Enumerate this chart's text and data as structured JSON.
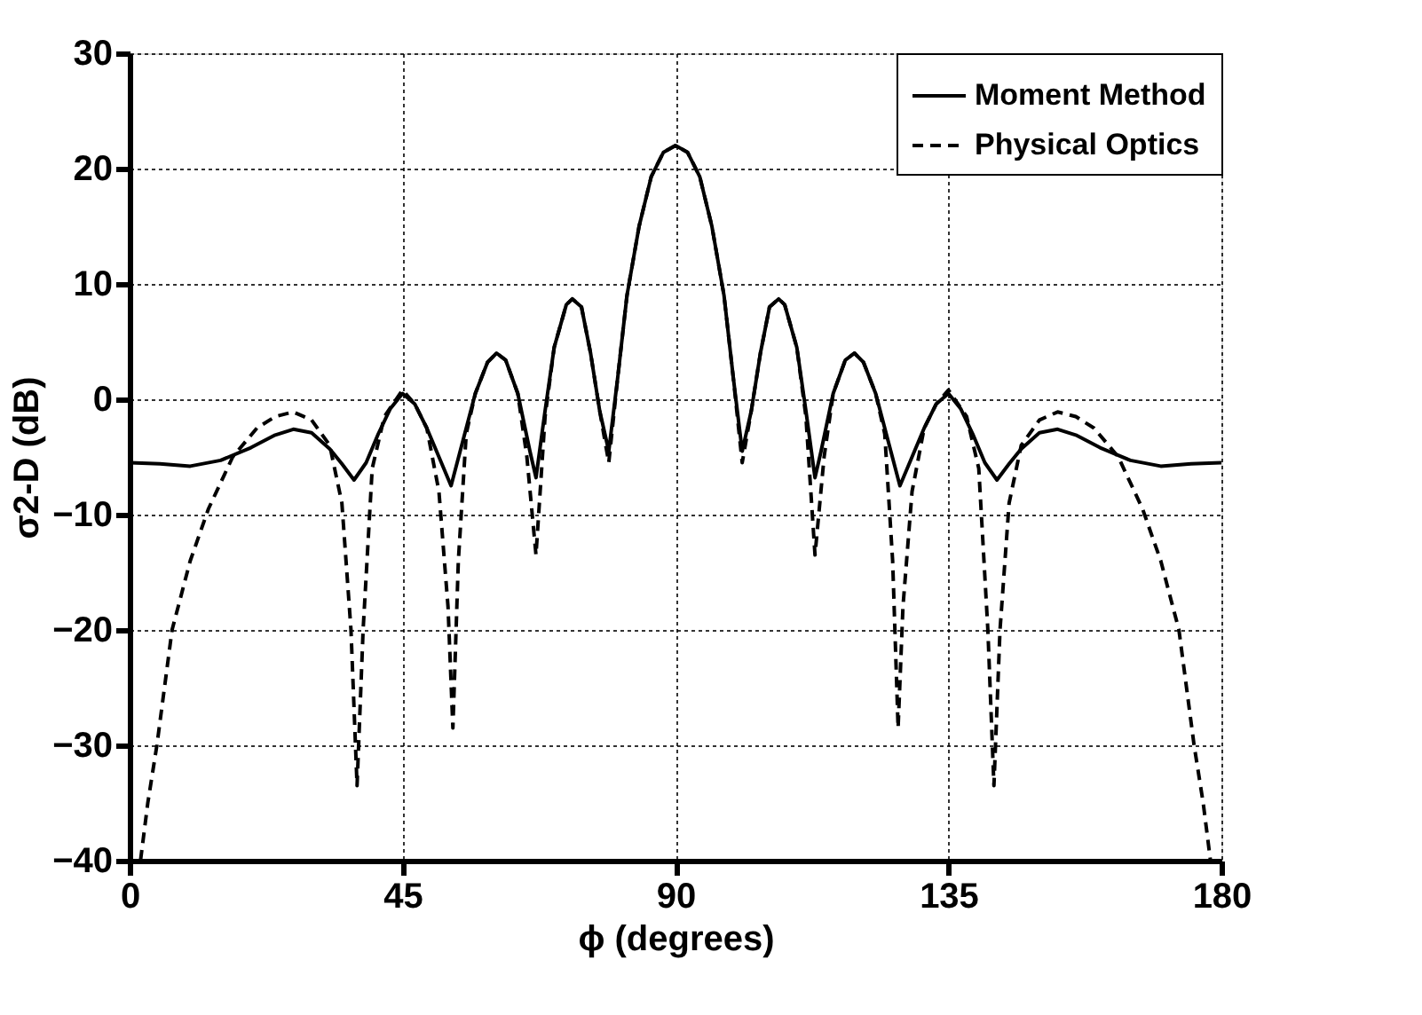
{
  "chart_data": {
    "type": "line",
    "xlabel": "ϕ (degrees)",
    "ylabel": "σ2-D (dB)",
    "xlim": [
      0,
      180
    ],
    "xticks": [
      0,
      45,
      90,
      135,
      180
    ],
    "ylim": [
      -40,
      30
    ],
    "yticks": [
      -40,
      -30,
      -20,
      -10,
      0,
      10,
      20,
      30
    ],
    "grid": true,
    "legend": "top right",
    "marker": "none",
    "series": [
      {
        "name": "Moment Method",
        "color": "#000000",
        "line_style": "solid",
        "x": [
          0,
          5,
          10,
          15,
          20,
          24,
          27,
          30,
          33,
          35,
          37,
          39,
          41,
          43,
          45,
          47,
          49,
          51,
          53,
          55,
          57,
          59,
          60.5,
          62,
          64,
          66,
          67,
          68.5,
          70,
          72,
          73,
          74.5,
          76,
          77.5,
          79,
          80.5,
          82,
          84,
          86,
          88,
          90,
          92,
          94,
          96,
          98,
          99.5,
          101,
          102.5,
          104,
          105.5,
          107,
          108,
          110,
          111.5,
          113,
          114,
          116,
          118,
          119.5,
          121,
          123,
          125,
          127,
          129,
          131,
          133,
          135,
          137,
          139,
          141,
          143,
          145,
          147,
          150,
          153,
          156,
          160,
          165,
          170,
          175,
          180
        ],
        "values": [
          -5.5,
          -5.6,
          -5.8,
          -5.3,
          -4.2,
          -3.1,
          -2.6,
          -2.9,
          -4.3,
          -5.6,
          -7,
          -5.5,
          -3,
          -0.8,
          0.5,
          -0.4,
          -2.5,
          -5,
          -7.5,
          -3.5,
          0.5,
          3.2,
          4,
          3.4,
          0.5,
          -4.5,
          -6.8,
          -1,
          4.5,
          8.2,
          8.7,
          8,
          4,
          -1,
          -4.5,
          2,
          9,
          15,
          19.3,
          21.4,
          22,
          21.4,
          19.3,
          15,
          9,
          2,
          -4.5,
          -1,
          4,
          8,
          8.7,
          8.2,
          4.5,
          -1,
          -6.8,
          -4.5,
          0.5,
          3.4,
          4,
          3.2,
          0.5,
          -3.5,
          -7.5,
          -5,
          -2.5,
          -0.4,
          0.5,
          -0.8,
          -3,
          -5.5,
          -7,
          -5.6,
          -4.3,
          -2.9,
          -2.6,
          -3.1,
          -4.2,
          -5.3,
          -5.8,
          -5.6,
          -5.5
        ]
      },
      {
        "name": "Physical Optics",
        "color": "#000000",
        "line_style": "dashed",
        "x": [
          1.8,
          3,
          4.5,
          7,
          10,
          13,
          17,
          21,
          24,
          27,
          30,
          33,
          35,
          36.5,
          37.5,
          38.5,
          40,
          42,
          45,
          47,
          49,
          51,
          52.5,
          53.3,
          54.2,
          55.5,
          57,
          59,
          60.5,
          62,
          64,
          65.5,
          67,
          68.5,
          70,
          72,
          73,
          74.5,
          76,
          77.5,
          79,
          80.5,
          82,
          84,
          86,
          88,
          90,
          92,
          94,
          96,
          98,
          99.5,
          101,
          102.5,
          104,
          105.5,
          107,
          108,
          110,
          111.5,
          113,
          114.5,
          116,
          118,
          119.5,
          121,
          123,
          124.5,
          125.8,
          126.7,
          127.5,
          129,
          131,
          133,
          135,
          138,
          140,
          141.5,
          142.5,
          143.5,
          145,
          147,
          150,
          153,
          156,
          159,
          163,
          167,
          170,
          173,
          175.5,
          177,
          178.2
        ],
        "values": [
          -40,
          -35,
          -30,
          -20,
          -14,
          -9.5,
          -5,
          -2.5,
          -1.5,
          -1.1,
          -1.8,
          -4,
          -9,
          -20,
          -33.5,
          -20,
          -6,
          -1.5,
          0.8,
          -0.4,
          -2.5,
          -8,
          -18,
          -28.5,
          -14,
          -3,
          0.5,
          3.2,
          4,
          3.4,
          0.5,
          -5,
          -13.5,
          -1.5,
          4.5,
          8.2,
          8.7,
          8,
          4,
          -1,
          -5.5,
          2,
          9,
          15,
          19.3,
          21.4,
          22,
          21.4,
          19.3,
          15,
          9,
          2,
          -5.5,
          -1,
          4,
          8,
          8.7,
          8.2,
          4.5,
          -1.5,
          -13.5,
          -5,
          0.5,
          3.4,
          4,
          3.2,
          0.5,
          -3,
          -14,
          -28.5,
          -18,
          -8,
          -2.5,
          -0.4,
          0.8,
          -1.5,
          -6,
          -20,
          -33.5,
          -20,
          -9,
          -4,
          -1.8,
          -1.1,
          -1.5,
          -2.5,
          -5,
          -9.5,
          -14,
          -20,
          -30,
          -35,
          -40
        ]
      }
    ]
  }
}
